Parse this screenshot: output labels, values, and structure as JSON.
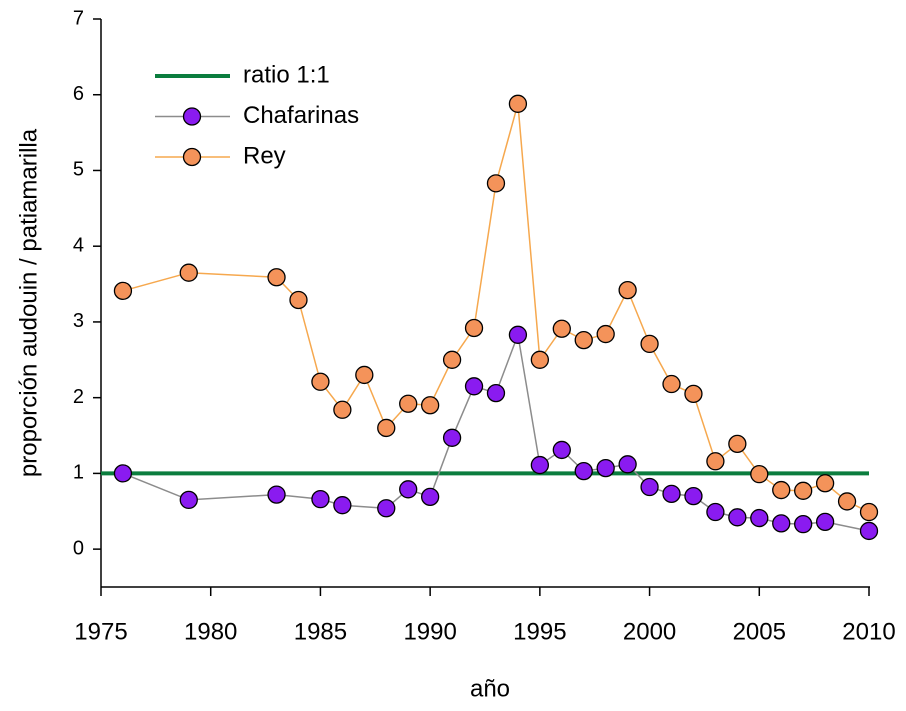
{
  "chart_data": {
    "type": "line",
    "x_label": "año",
    "y_label": "proporción audouin / patiamarilla",
    "xlim": [
      1975,
      2010
    ],
    "xticks": [
      1975,
      1980,
      1985,
      1990,
      1995,
      2000,
      2005,
      2010
    ],
    "ylim": [
      -0.5,
      7
    ],
    "yticks": [
      0,
      1,
      2,
      3,
      4,
      5,
      6,
      7
    ],
    "legend": "upper left",
    "series": [
      {
        "name": "ratio 1:1",
        "color": "#0b7d3e",
        "marker": false,
        "x": [
          1975,
          2010
        ],
        "values": [
          1,
          1
        ]
      },
      {
        "name": "Chafarinas",
        "color": "#8a1bf0",
        "line_color": "#8c8c8c",
        "marker": true,
        "x": [
          1976,
          1979,
          1983,
          1985,
          1986,
          1988,
          1989,
          1990,
          1991,
          1992,
          1993,
          1994,
          1995,
          1996,
          1997,
          1998,
          1999,
          2000,
          2001,
          2002,
          2003,
          2004,
          2005,
          2006,
          2007,
          2008,
          2010
        ],
        "values": [
          1.0,
          0.65,
          0.72,
          0.66,
          0.58,
          0.54,
          0.79,
          0.69,
          1.47,
          2.15,
          2.06,
          2.83,
          1.11,
          1.31,
          1.03,
          1.07,
          1.12,
          0.82,
          0.73,
          0.7,
          0.49,
          0.42,
          0.41,
          0.34,
          0.33,
          0.36,
          0.24
        ]
      },
      {
        "name": "Rey",
        "color": "#f4935a",
        "line_color": "#f6a84e",
        "marker": true,
        "x": [
          1976,
          1979,
          1983,
          1984,
          1985,
          1986,
          1987,
          1988,
          1989,
          1990,
          1991,
          1992,
          1993,
          1994,
          1995,
          1996,
          1997,
          1998,
          1999,
          2000,
          2001,
          2002,
          2003,
          2004,
          2005,
          2006,
          2007,
          2008,
          2009,
          2010
        ],
        "values": [
          3.41,
          3.65,
          3.59,
          3.29,
          2.21,
          1.84,
          2.3,
          1.6,
          1.92,
          1.9,
          2.5,
          2.92,
          4.83,
          5.88,
          2.5,
          2.91,
          2.76,
          2.84,
          3.42,
          2.71,
          2.18,
          2.05,
          1.16,
          1.39,
          0.99,
          0.78,
          0.77,
          0.87,
          0.63,
          0.49
        ]
      }
    ]
  }
}
